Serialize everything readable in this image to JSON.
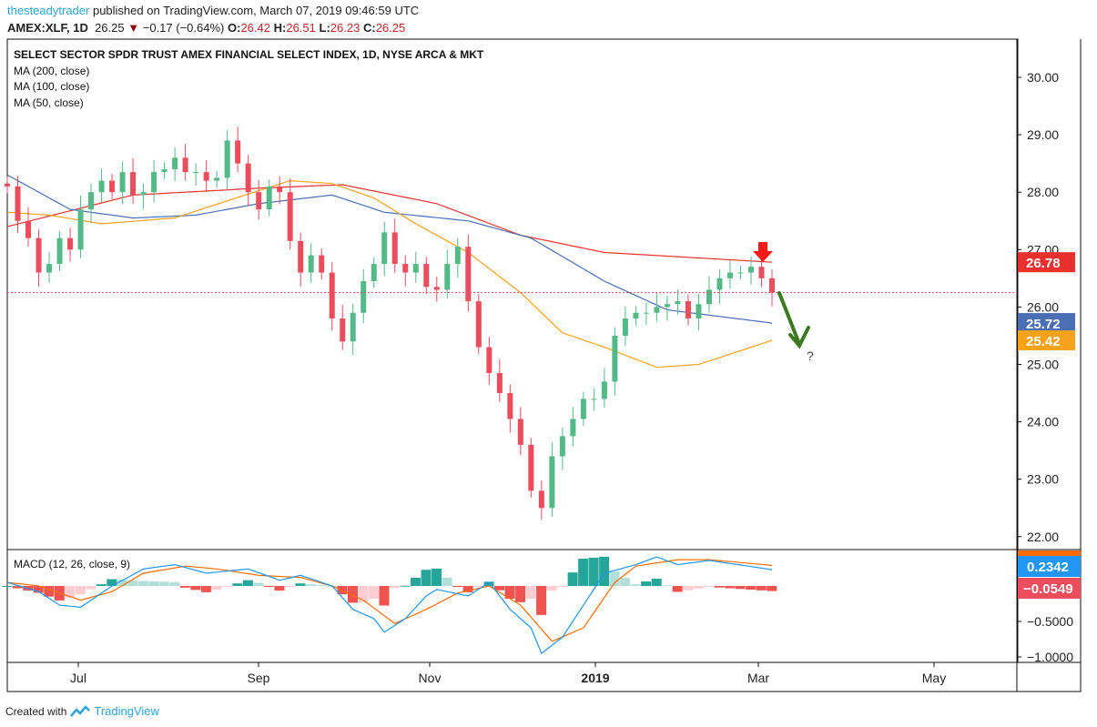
{
  "header": {
    "author": "thesteadytrader",
    "published": "published on TradingView.com, March 07, 2019 09:46:59 UTC",
    "symbol": "AMEX:XLF, 1D",
    "last": "26.25",
    "change": "−0.17 (−0.64%)",
    "o_label": "O:",
    "o": "26.42",
    "h_label": "H:",
    "h": "26.51",
    "l_label": "L:",
    "l": "26.23",
    "c_label": "C:",
    "c": "26.25"
  },
  "legend": {
    "title": "SELECT SECTOR SPDR TRUST AMEX FINANCIAL SELECT INDEX, 1D, NYSE ARCA & MKT",
    "ma200": "MA (200, close)",
    "ma100": "MA (100, close)",
    "ma50": "MA (50, close)",
    "macd": "MACD (12, 26, close, 9)"
  },
  "colors": {
    "up": "#53b987",
    "down": "#eb4d5c",
    "ma200": "#e8302c",
    "ma100": "#4a6fb5",
    "ma50": "#f7a21b",
    "macd": "#2196f3",
    "signal": "#ff6d00",
    "annot_red": "#ff1a1a",
    "annot_green": "#3b7a1e"
  },
  "annotation": {
    "question": "?"
  },
  "footer": {
    "created": "Created with",
    "brand": "TradingView"
  },
  "chart_data": [
    {
      "type": "candlestick",
      "title": "AMEX:XLF 1D",
      "ylim": [
        21.8,
        30.6
      ],
      "yticks": [
        "30.00",
        "29.00",
        "28.00",
        "27.00",
        "26.00",
        "25.00",
        "24.00",
        "23.00",
        "22.00"
      ],
      "xticks": [
        "Jul",
        "Sep",
        "Nov",
        "2019",
        "Mar",
        "May"
      ],
      "closes": [
        28.1,
        27.5,
        27.2,
        26.6,
        26.75,
        27.2,
        27.0,
        27.7,
        28.0,
        28.2,
        28.0,
        28.35,
        27.95,
        28.0,
        28.35,
        28.4,
        28.6,
        28.35,
        28.35,
        28.2,
        28.25,
        28.9,
        28.5,
        28.0,
        27.7,
        28.1,
        28.0,
        27.15,
        26.6,
        26.9,
        26.6,
        25.8,
        25.4,
        25.9,
        26.45,
        26.75,
        27.3,
        26.75,
        26.6,
        26.75,
        26.35,
        26.3,
        26.75,
        27.05,
        26.1,
        25.3,
        24.85,
        24.5,
        24.05,
        23.6,
        22.8,
        22.5,
        23.4,
        23.75,
        24.05,
        24.4,
        24.4,
        24.7,
        25.5,
        25.8,
        25.9,
        25.9,
        26.0,
        26.05,
        26.1,
        25.8,
        26.05,
        26.3,
        26.5,
        26.6,
        26.6,
        26.7,
        26.5,
        26.25
      ],
      "ma200": [
        [
          0,
          27.4
        ],
        [
          12,
          27.95
        ],
        [
          24,
          28.07
        ],
        [
          32,
          28.13
        ],
        [
          41,
          27.8
        ],
        [
          49,
          27.25
        ],
        [
          57,
          26.95
        ],
        [
          73,
          26.78
        ]
      ],
      "ma100": [
        [
          0,
          28.3
        ],
        [
          6,
          27.7
        ],
        [
          12,
          27.55
        ],
        [
          18,
          27.6
        ],
        [
          24,
          27.8
        ],
        [
          31,
          27.95
        ],
        [
          36,
          27.65
        ],
        [
          44,
          27.5
        ],
        [
          50,
          27.2
        ],
        [
          57,
          26.45
        ],
        [
          63,
          25.95
        ],
        [
          73,
          25.72
        ]
      ],
      "ma50": [
        [
          0,
          27.65
        ],
        [
          4,
          27.6
        ],
        [
          9,
          27.45
        ],
        [
          16,
          27.55
        ],
        [
          21,
          27.85
        ],
        [
          27,
          28.2
        ],
        [
          31,
          28.15
        ],
        [
          35,
          27.9
        ],
        [
          39,
          27.45
        ],
        [
          44,
          26.95
        ],
        [
          49,
          26.25
        ],
        [
          53,
          25.55
        ],
        [
          57,
          25.3
        ],
        [
          62,
          24.95
        ],
        [
          66,
          25.0
        ],
        [
          73,
          25.42
        ]
      ],
      "last_labels": {
        "ma200": "26.78",
        "ma100": "25.72",
        "ma50": "25.42"
      }
    },
    {
      "type": "line",
      "title": "MACD (12, 26, close, 9)",
      "ylim": [
        -1.05,
        0.5
      ],
      "yticks": [
        "-0.5000",
        "-1.0000"
      ],
      "macd": [
        [
          0,
          0.05
        ],
        [
          3,
          -0.08
        ],
        [
          5,
          -0.27
        ],
        [
          7,
          -0.3
        ],
        [
          10,
          0
        ],
        [
          13,
          0.24
        ],
        [
          16,
          0.3
        ],
        [
          19,
          0.18
        ],
        [
          23,
          0.24
        ],
        [
          26,
          0.08
        ],
        [
          28,
          0.15
        ],
        [
          31,
          0
        ],
        [
          33,
          -0.33
        ],
        [
          35,
          -0.46
        ],
        [
          36,
          -0.65
        ],
        [
          38,
          -0.46
        ],
        [
          40,
          -0.14
        ],
        [
          41,
          -0.05
        ],
        [
          44,
          -0.14
        ],
        [
          46,
          0.05
        ],
        [
          48,
          -0.33
        ],
        [
          50,
          -0.59
        ],
        [
          51,
          -0.95
        ],
        [
          53,
          -0.72
        ],
        [
          55,
          -0.27
        ],
        [
          57,
          0.18
        ],
        [
          60,
          0.3
        ],
        [
          62,
          0.41
        ],
        [
          64,
          0.3
        ],
        [
          67,
          0.36
        ],
        [
          73,
          0.23
        ]
      ],
      "signal": [
        [
          0,
          0.05
        ],
        [
          3,
          0
        ],
        [
          7,
          -0.2
        ],
        [
          10,
          -0.08
        ],
        [
          13,
          0.18
        ],
        [
          17,
          0.28
        ],
        [
          20,
          0.24
        ],
        [
          24,
          0.15
        ],
        [
          28,
          0.12
        ],
        [
          31,
          0
        ],
        [
          34,
          -0.2
        ],
        [
          37,
          -0.53
        ],
        [
          40,
          -0.33
        ],
        [
          43,
          -0.1
        ],
        [
          46,
          0
        ],
        [
          49,
          -0.27
        ],
        [
          52,
          -0.78
        ],
        [
          55,
          -0.59
        ],
        [
          58,
          0.05
        ],
        [
          60,
          0.28
        ],
        [
          64,
          0.37
        ],
        [
          67,
          0.37
        ],
        [
          73,
          0.29
        ]
      ],
      "last_labels": {
        "macd": "0.2342",
        "histogram": "−0.0549"
      }
    }
  ]
}
